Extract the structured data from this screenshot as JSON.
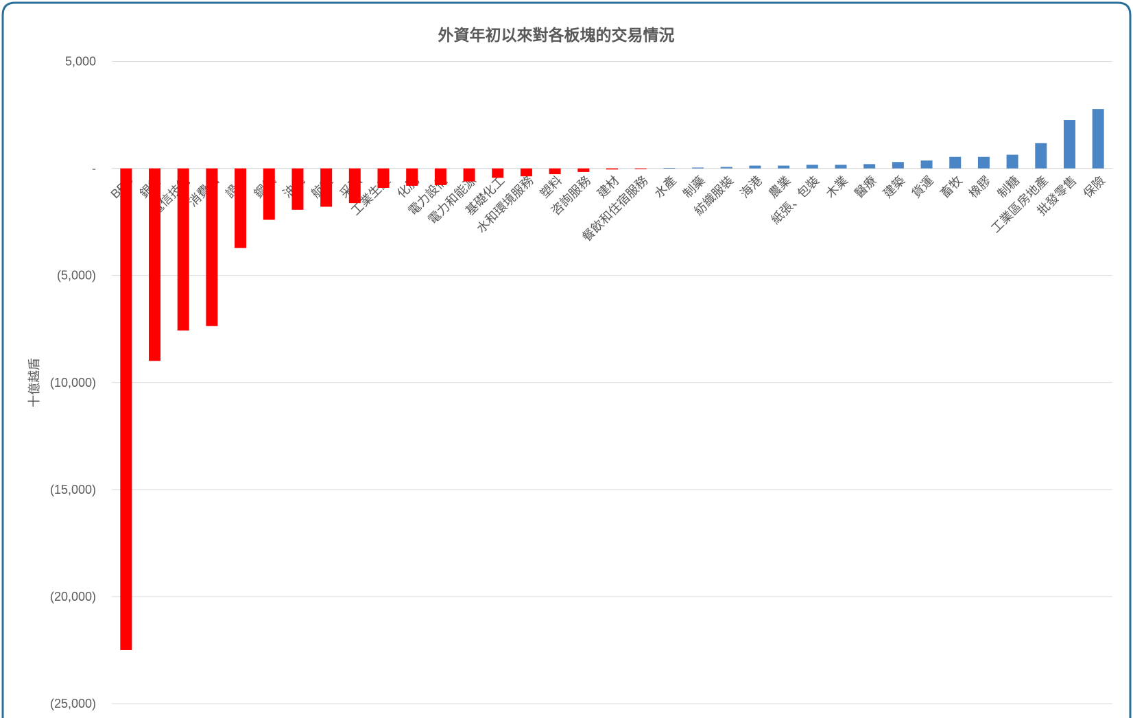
{
  "chart_data": {
    "type": "bar",
    "title": "外資年初以來對各板塊的交易情況",
    "xlabel": "",
    "ylabel": "十億越盾",
    "categories": [
      "BĐS",
      "銀行",
      "電信技術",
      "消費品",
      "證券",
      "鋼鐵",
      "油氣",
      "航空",
      "采礦",
      "工業生產",
      "化肥",
      "電力設備",
      "電力和能源",
      "基礎化工",
      "水和環境服務",
      "塑料",
      "咨詢服務",
      "建材",
      "餐飲和住宿服務",
      "水產",
      "制藥",
      "紡織服裝",
      "海港",
      "農業",
      "紙張、包裝",
      "木業",
      "醫療",
      "建築",
      "貨運",
      "畜牧",
      "橡膠",
      "制糖",
      "工業區房地產",
      "批發零售",
      "保險"
    ],
    "values": [
      -22500,
      -8990,
      -7570,
      -7360,
      -3720,
      -2400,
      -1930,
      -1790,
      -1620,
      -910,
      -810,
      -780,
      -610,
      -440,
      -370,
      -270,
      -170,
      -50,
      -30,
      20,
      40,
      70,
      130,
      130,
      170,
      170,
      200,
      300,
      370,
      540,
      540,
      640,
      1180,
      2260,
      2770
    ],
    "ylim": [
      -25000,
      5000
    ],
    "yticks": [
      5000,
      0,
      -5000,
      -10000,
      -15000,
      -20000,
      -25000
    ],
    "ytick_labels": [
      "5,000",
      "-",
      "(5,000)",
      "(10,000)",
      "(15,000)",
      "(20,000)",
      "(25,000)"
    ],
    "grid": true,
    "legend": "none",
    "colors": {
      "negative": "#FF0000",
      "positive": "#4A86C5",
      "grid": "#D9D9D9",
      "frame": "#2B6F98",
      "text": "#595959"
    }
  }
}
